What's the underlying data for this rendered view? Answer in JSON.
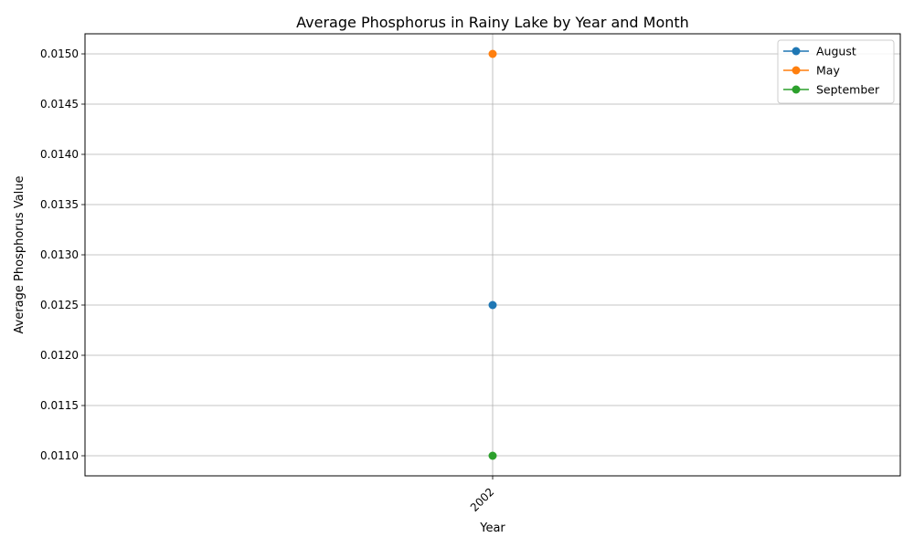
{
  "chart_data": {
    "type": "line",
    "title": "Average Phosphorus in Rainy Lake by Year and Month",
    "xlabel": "Year",
    "ylabel": "Average Phosphorus Value",
    "x": [
      "2002"
    ],
    "ylim": [
      0.0108,
      0.0152
    ],
    "yticks": [
      "0.0110",
      "0.0115",
      "0.0120",
      "0.0125",
      "0.0130",
      "0.0135",
      "0.0140",
      "0.0145",
      "0.0150"
    ],
    "grid": true,
    "legend_position": "top-right",
    "series": [
      {
        "name": "August",
        "color": "#1f77b4",
        "values": [
          0.0125
        ]
      },
      {
        "name": "May",
        "color": "#ff7f0e",
        "values": [
          0.015
        ]
      },
      {
        "name": "September",
        "color": "#2ca02c",
        "values": [
          0.011
        ]
      }
    ]
  }
}
